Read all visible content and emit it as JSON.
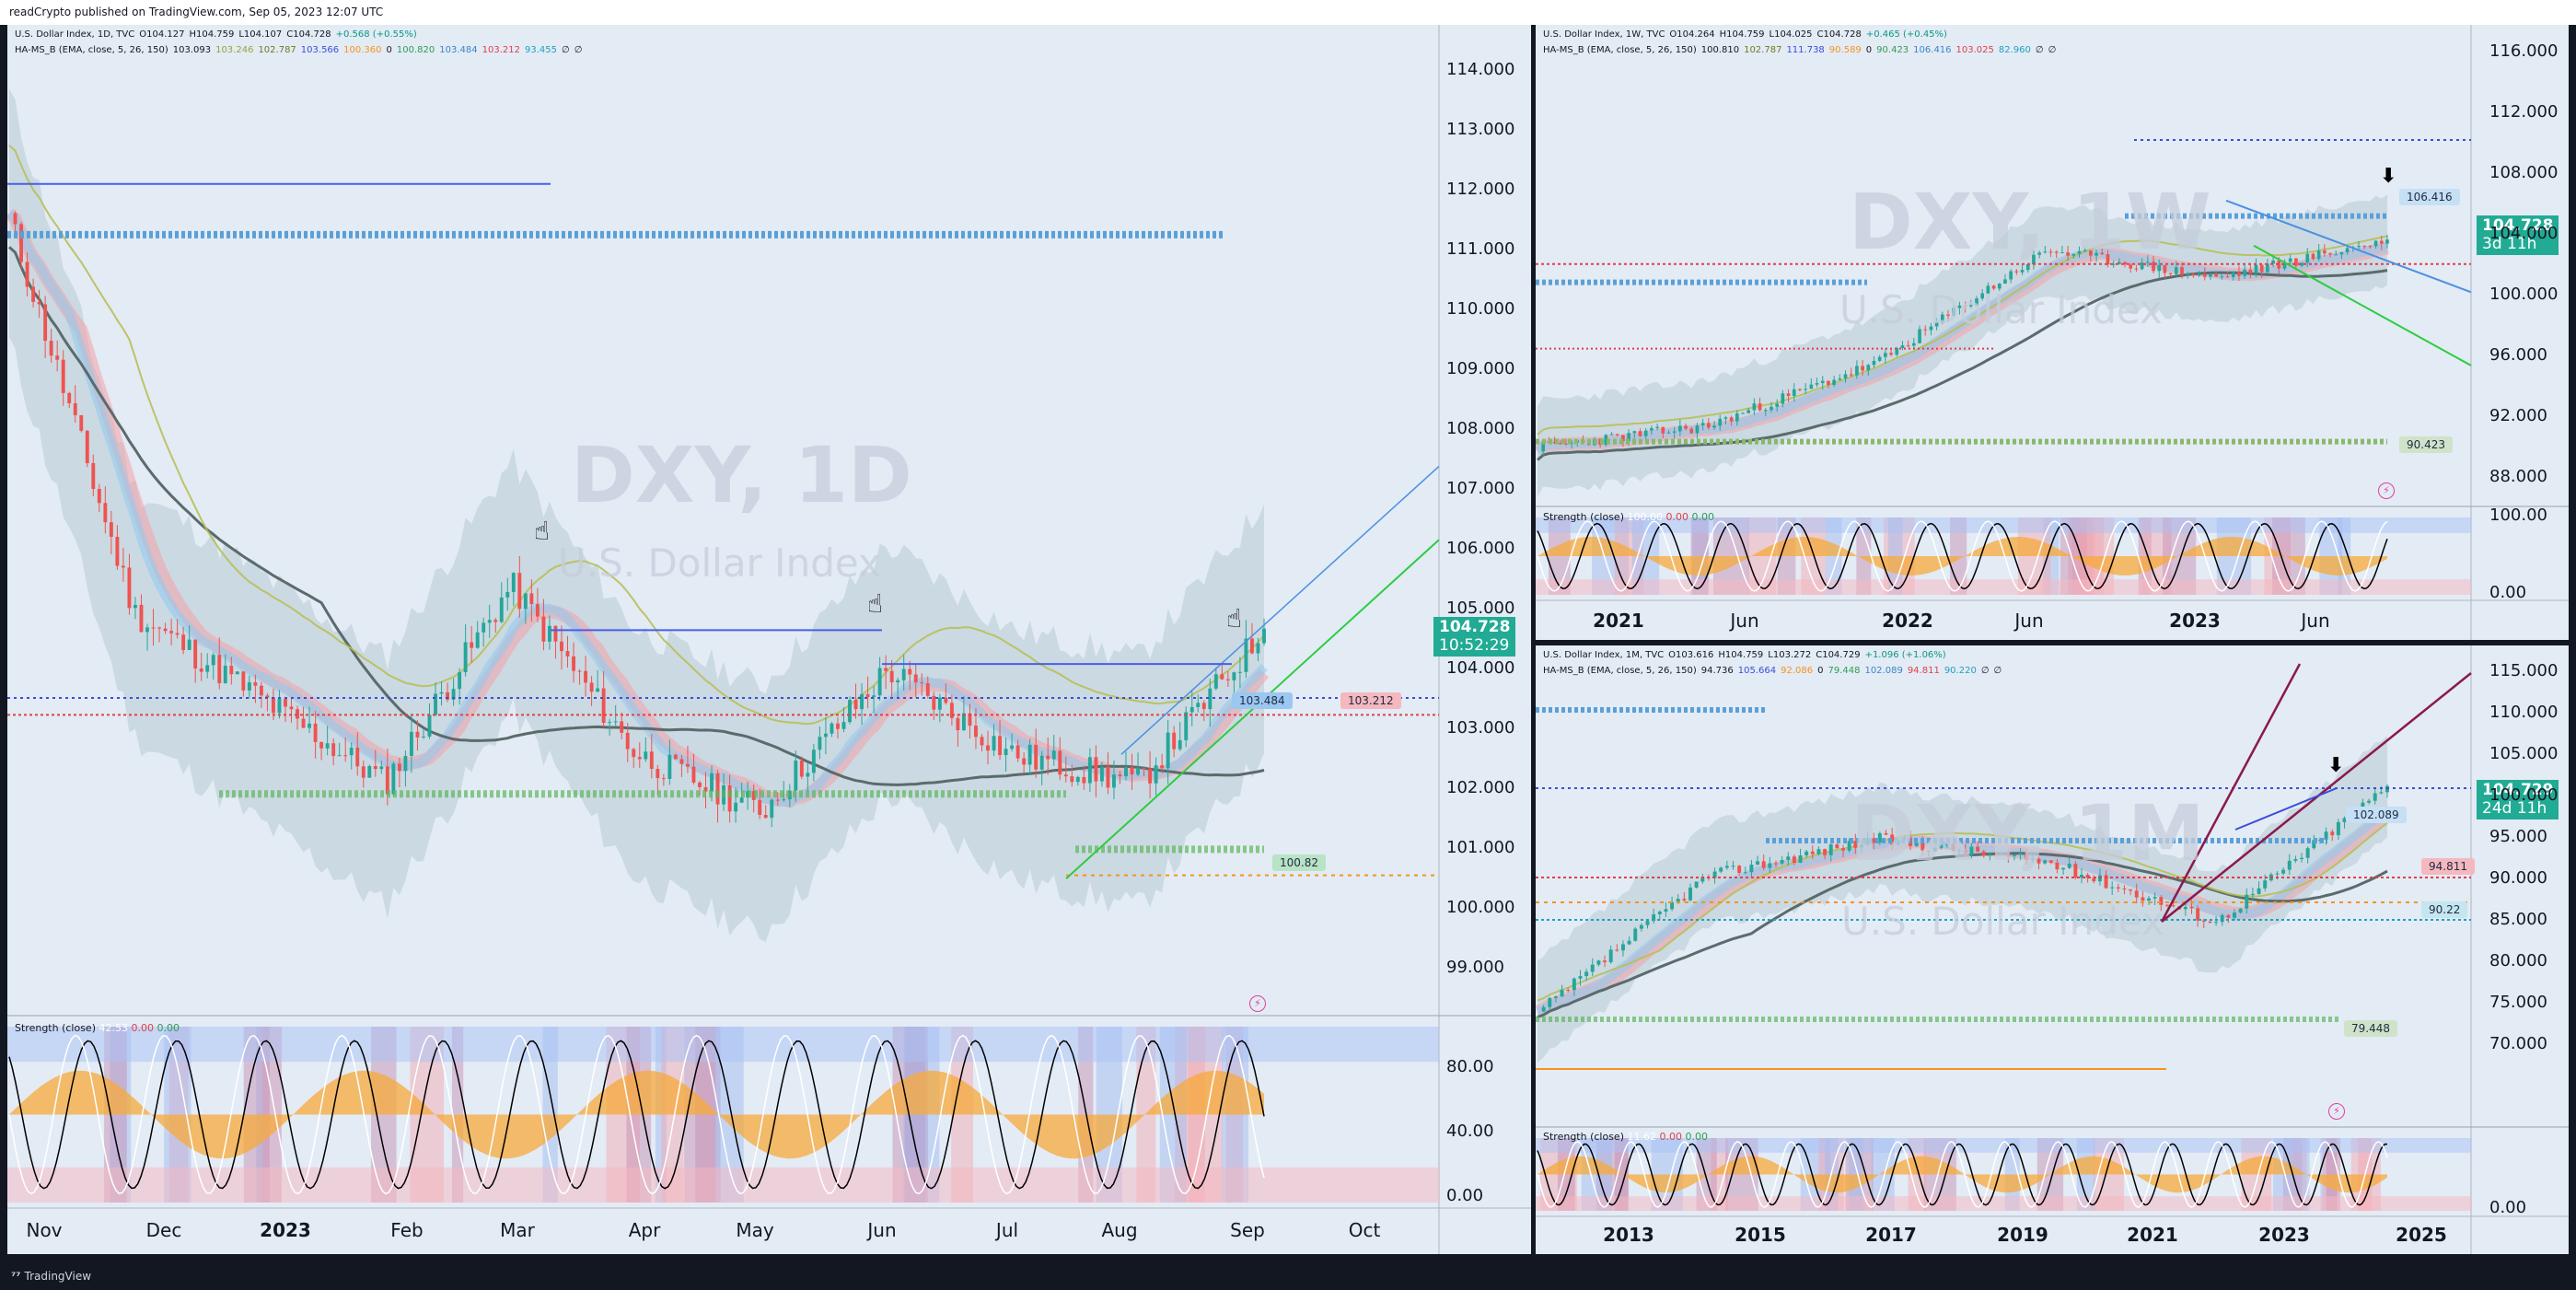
{
  "header": {
    "text": "readCrypto published on TradingView.com, Sep 05, 2023 12:07 UTC"
  },
  "footer": {
    "logo_text": "TradingView"
  },
  "panels": {
    "daily": {
      "legend1": {
        "symbol": "U.S. Dollar Index, 1D, TVC",
        "o": "O104.127",
        "h": "H104.759",
        "l": "L104.107",
        "c": "C104.728",
        "chg": "+0.568 (+0.55%)"
      },
      "legend2": {
        "name": "HA-MS_B (EMA, close, 5, 26, 150)",
        "v1": "103.093",
        "v2": "103.246",
        "v3": "102.787",
        "v4": "103.566",
        "v5": "100.360",
        "v6": "0",
        "v7": "100.820",
        "v8": "103.484",
        "v9": "103.212",
        "v10": "93.455",
        "v11": "∅",
        "v12": "∅"
      },
      "watermark": "DXY, 1D",
      "watermark_sub": "U.S. Dollar Index",
      "yaxis": [
        "114.000",
        "113.000",
        "112.000",
        "111.000",
        "110.000",
        "109.000",
        "108.000",
        "107.000",
        "106.000",
        "105.000",
        "104.000",
        "103.000",
        "102.000",
        "101.000",
        "100.000",
        "99.000"
      ],
      "price_tag": {
        "value": "104.728",
        "countdown": "10:52:29"
      },
      "tags": {
        "a": "103.484",
        "b": "103.212",
        "c": "100.82"
      },
      "strength_label": "Strength (close)",
      "strength_vals": [
        "42.53",
        "0.00",
        "0.00"
      ],
      "strength_axis": [
        "80.00",
        "40.00",
        "0.00"
      ],
      "xaxis": [
        "Nov",
        "Dec",
        "2023",
        "Feb",
        "Mar",
        "Apr",
        "May",
        "Jun",
        "Jul",
        "Aug",
        "Sep",
        "Oct"
      ]
    },
    "weekly": {
      "legend1": {
        "symbol": "U.S. Dollar Index, 1W, TVC",
        "o": "O104.264",
        "h": "H104.759",
        "l": "L104.025",
        "c": "C104.728",
        "chg": "+0.465 (+0.45%)"
      },
      "legend2": {
        "name": "HA-MS_B (EMA, close, 5, 26, 150)",
        "v1": "100.810",
        "v2": "102.787",
        "v3": "111.738",
        "v4": "90.589",
        "v5": "0",
        "v6": "90.423",
        "v7": "106.416",
        "v8": "103.025",
        "v9": "82.960",
        "v10": "∅",
        "v11": "∅"
      },
      "watermark": "DXY, 1W",
      "watermark_sub": "U.S. Dollar Index",
      "yaxis": [
        "116.000",
        "112.000",
        "108.000",
        "104.000",
        "100.000",
        "96.000",
        "92.000",
        "88.000"
      ],
      "price_tag": {
        "value": "104.728",
        "countdown": "3d 11h"
      },
      "tags": {
        "a": "106.416",
        "b": "90.423"
      },
      "strength_label": "Strength (close)",
      "strength_vals": [
        "100.00",
        "0.00",
        "0.00"
      ],
      "strength_axis": [
        "100.00",
        "0.00"
      ],
      "xaxis": [
        "2021",
        "Jun",
        "2022",
        "Jun",
        "2023",
        "Jun"
      ]
    },
    "monthly": {
      "legend1": {
        "symbol": "U.S. Dollar Index, 1M, TVC",
        "o": "O103.616",
        "h": "H104.759",
        "l": "L103.272",
        "c": "C104.729",
        "chg": "+1.096 (+1.06%)"
      },
      "legend2": {
        "name": "HA-MS_B (EMA, close, 5, 26, 150)",
        "v1": "94.736",
        "v2": "105.664",
        "v3": "92.086",
        "v4": "0",
        "v5": "79.448",
        "v6": "102.089",
        "v7": "94.811",
        "v8": "90.220",
        "v9": "∅",
        "v10": "∅"
      },
      "watermark": "DXY, 1M",
      "watermark_sub": "U.S. Dollar Index",
      "yaxis": [
        "115.000",
        "110.000",
        "105.000",
        "100.000",
        "95.000",
        "90.000",
        "85.000",
        "80.000",
        "75.000",
        "70.000"
      ],
      "price_tag": {
        "value": "104.729",
        "countdown": "24d 11h"
      },
      "tags": {
        "a": "102.089",
        "b": "94.811",
        "c": "90.22",
        "d": "79.448"
      },
      "strength_label": "Strength (close)",
      "strength_vals": [
        "11.62",
        "0.00",
        "0.00"
      ],
      "strength_axis": [
        "0.00"
      ],
      "xaxis": [
        "2013",
        "2015",
        "2017",
        "2019",
        "2021",
        "2023",
        "2025"
      ]
    }
  },
  "chart_data": [
    {
      "type": "line",
      "symbol": "DXY, 1D",
      "x": [
        "Nov",
        "Dec",
        "2023",
        "Feb",
        "Mar",
        "Apr",
        "May",
        "Jun",
        "Jul",
        "Aug",
        "Sep"
      ],
      "series": [
        {
          "name": "",
          "values": [
            112.0,
            105.0,
            103.5,
            102.0,
            105.5,
            102.5,
            101.5,
            104.0,
            102.5,
            102.0,
            104.7
          ]
        }
      ],
      "ylim": [
        98.3,
        114.6
      ],
      "last": 104.728,
      "colors": {
        "up": "#26a69a",
        "down": "#ef5350",
        "upper_level": "#5aa0d8",
        "stepline": "#4a5ee8",
        "ema150": "#5b6b6b"
      }
    },
    {
      "type": "line",
      "symbol": "DXY, 1W",
      "x": [
        "2021",
        "Jun",
        "2022",
        "Jun",
        "2023",
        "Jun"
      ],
      "series": [
        {
          "name": "",
          "values": [
            90.0,
            91.5,
            96.0,
            104.0,
            102.0,
            104.7
          ]
        }
      ],
      "ylim": [
        86.0,
        118.0
      ],
      "last": 104.728
    },
    {
      "type": "line",
      "symbol": "DXY, 1M",
      "x": [
        "2013",
        "2015",
        "2017",
        "2019",
        "2021",
        "2023"
      ],
      "series": [
        {
          "name": "",
          "values": [
            80.0,
            95.0,
            99.0,
            96.5,
            90.0,
            104.7
          ]
        }
      ],
      "ylim": [
        68.0,
        118.0
      ],
      "last": 104.729
    }
  ]
}
